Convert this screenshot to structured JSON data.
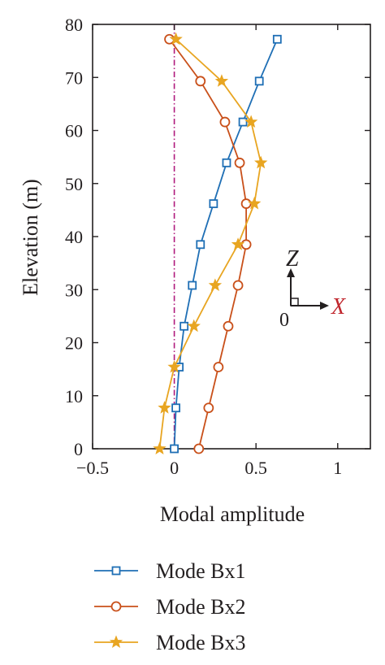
{
  "chart_data": {
    "type": "line",
    "orientation": "profile",
    "xlabel": "Modal amplitude",
    "ylabel": "Elevation (m)",
    "xlim": [
      -0.5,
      1.2
    ],
    "ylim": [
      0,
      80
    ],
    "xticks": [
      -0.5,
      0,
      0.5,
      1
    ],
    "xtick_labels": [
      "−0.5",
      "0",
      "0.5",
      "1"
    ],
    "yticks": [
      0,
      10,
      20,
      30,
      40,
      50,
      60,
      70,
      80
    ],
    "ytick_labels": [
      "0",
      "10",
      "20",
      "30",
      "40",
      "50",
      "60",
      "70",
      "80"
    ],
    "grid": false,
    "legend_position": "bottom",
    "reference_line": {
      "x": 0,
      "style": "dash-dot",
      "color": "#b0197d"
    },
    "elevations": [
      0,
      7.7,
      15.4,
      23.1,
      30.8,
      38.5,
      46.2,
      53.9,
      61.6,
      69.3,
      77.2
    ],
    "series": [
      {
        "name": "Mode Bx1",
        "color": "#1f6fb5",
        "marker": "square",
        "x": [
          0.0,
          0.01,
          0.03,
          0.06,
          0.11,
          0.16,
          0.24,
          0.32,
          0.42,
          0.52,
          0.63
        ],
        "y": [
          0,
          7.7,
          15.4,
          23.1,
          30.8,
          38.5,
          46.2,
          53.9,
          61.6,
          69.3,
          77.2
        ]
      },
      {
        "name": "Mode Bx2",
        "color": "#c9501a",
        "marker": "circle",
        "x": [
          0.15,
          0.21,
          0.27,
          0.33,
          0.39,
          0.44,
          0.44,
          0.4,
          0.31,
          0.16,
          -0.03
        ],
        "y": [
          0,
          7.7,
          15.4,
          23.1,
          30.8,
          38.5,
          46.2,
          53.9,
          61.6,
          69.3,
          77.2
        ]
      },
      {
        "name": "Mode Bx3",
        "color": "#e8a521",
        "marker": "star",
        "x": [
          -0.09,
          -0.06,
          0.0,
          0.12,
          0.25,
          0.39,
          0.49,
          0.53,
          0.47,
          0.29,
          0.01
        ],
        "y": [
          0,
          7.7,
          15.4,
          23.1,
          30.8,
          38.5,
          46.2,
          53.9,
          61.6,
          69.3,
          77.2
        ]
      }
    ]
  },
  "axes_inset": {
    "vertical_label": "Z",
    "horizontal_label": "X",
    "origin_label": "0",
    "vertical_color": "#231f20",
    "horizontal_color": "#c0262d"
  }
}
